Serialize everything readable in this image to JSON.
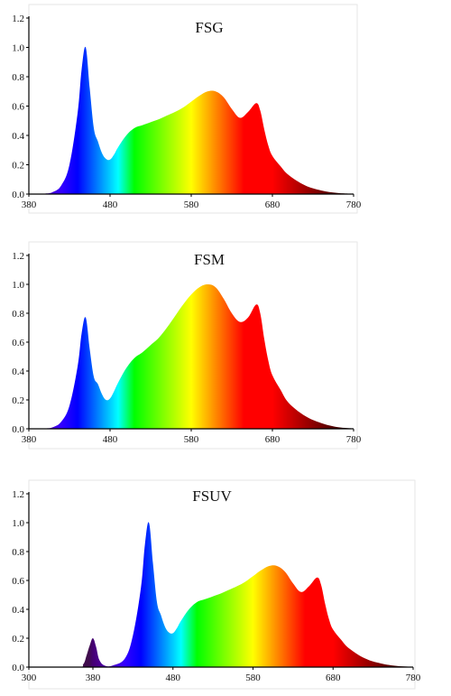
{
  "chart_data": [
    {
      "type": "area",
      "title": "FSG",
      "xlabel": "",
      "ylabel": "",
      "xlim": [
        380,
        780
      ],
      "ylim": [
        0,
        1.2
      ],
      "xticks": [
        380,
        480,
        580,
        680,
        780
      ],
      "yticks": [
        0.0,
        0.2,
        0.4,
        0.6,
        0.8,
        1.0,
        1.2
      ],
      "ytick_labels": [
        "0.0",
        "0.2",
        "0.4",
        "0.6",
        "0.8",
        "1.0",
        "1.2"
      ],
      "grid": false,
      "fill": "spectral",
      "x": [
        380,
        400,
        410,
        420,
        430,
        440,
        445,
        450,
        455,
        460,
        465,
        470,
        475,
        480,
        485,
        490,
        500,
        510,
        520,
        530,
        540,
        550,
        560,
        570,
        580,
        590,
        600,
        610,
        620,
        630,
        640,
        650,
        660,
        665,
        670,
        675,
        680,
        690,
        700,
        720,
        740,
        760,
        780
      ],
      "y": [
        0.0,
        0.003,
        0.015,
        0.06,
        0.2,
        0.55,
        0.85,
        1.0,
        0.72,
        0.45,
        0.36,
        0.28,
        0.24,
        0.235,
        0.27,
        0.32,
        0.4,
        0.45,
        0.47,
        0.49,
        0.51,
        0.535,
        0.56,
        0.59,
        0.63,
        0.67,
        0.7,
        0.7,
        0.66,
        0.58,
        0.52,
        0.56,
        0.62,
        0.57,
        0.44,
        0.33,
        0.26,
        0.19,
        0.13,
        0.06,
        0.025,
        0.008,
        0.002
      ]
    },
    {
      "type": "area",
      "title": "FSM",
      "xlabel": "",
      "ylabel": "",
      "xlim": [
        380,
        780
      ],
      "ylim": [
        0,
        1.2
      ],
      "xticks": [
        380,
        480,
        580,
        680,
        780
      ],
      "yticks": [
        0.0,
        0.2,
        0.4,
        0.6,
        0.8,
        1.0,
        1.2
      ],
      "ytick_labels": [
        "0.0",
        "0.2",
        "0.4",
        "0.6",
        "0.8",
        "1.0",
        "1.2"
      ],
      "grid": false,
      "fill": "spectral",
      "x": [
        380,
        400,
        410,
        420,
        430,
        440,
        445,
        450,
        455,
        460,
        465,
        470,
        475,
        480,
        485,
        490,
        500,
        510,
        520,
        530,
        540,
        550,
        560,
        570,
        580,
        590,
        600,
        610,
        620,
        630,
        640,
        650,
        660,
        665,
        670,
        675,
        680,
        690,
        700,
        720,
        740,
        760,
        780
      ],
      "y": [
        0.0,
        0.003,
        0.012,
        0.05,
        0.16,
        0.43,
        0.66,
        0.77,
        0.55,
        0.36,
        0.31,
        0.24,
        0.2,
        0.21,
        0.26,
        0.32,
        0.42,
        0.49,
        0.53,
        0.58,
        0.63,
        0.7,
        0.78,
        0.86,
        0.93,
        0.98,
        1.0,
        0.98,
        0.9,
        0.8,
        0.74,
        0.77,
        0.86,
        0.8,
        0.62,
        0.47,
        0.37,
        0.27,
        0.18,
        0.09,
        0.04,
        0.012,
        0.002
      ]
    },
    {
      "type": "area",
      "title": "FSUV",
      "xlabel": "",
      "ylabel": "",
      "xlim": [
        300,
        780
      ],
      "ylim": [
        0,
        1.2
      ],
      "xticks": [
        300,
        380,
        480,
        580,
        680,
        780
      ],
      "yticks": [
        0.0,
        0.2,
        0.4,
        0.6,
        0.8,
        1.0,
        1.2
      ],
      "ytick_labels": [
        "0.0",
        "0.2",
        "0.4",
        "0.6",
        "0.8",
        "1.0",
        "1.2"
      ],
      "grid": false,
      "fill": "spectral",
      "x": [
        300,
        360,
        368,
        372,
        376,
        380,
        384,
        388,
        395,
        405,
        420,
        430,
        440,
        445,
        450,
        455,
        460,
        465,
        470,
        475,
        480,
        485,
        490,
        500,
        510,
        520,
        530,
        540,
        550,
        560,
        570,
        580,
        590,
        600,
        610,
        620,
        630,
        640,
        650,
        660,
        665,
        670,
        675,
        680,
        690,
        700,
        720,
        740,
        760,
        780
      ],
      "y": [
        0.0,
        0.0,
        0.02,
        0.08,
        0.15,
        0.2,
        0.14,
        0.05,
        0.01,
        0.012,
        0.06,
        0.22,
        0.55,
        0.85,
        1.0,
        0.72,
        0.45,
        0.36,
        0.28,
        0.24,
        0.235,
        0.27,
        0.32,
        0.4,
        0.45,
        0.47,
        0.49,
        0.51,
        0.535,
        0.56,
        0.59,
        0.63,
        0.67,
        0.7,
        0.7,
        0.66,
        0.58,
        0.52,
        0.56,
        0.62,
        0.57,
        0.44,
        0.33,
        0.26,
        0.19,
        0.13,
        0.06,
        0.025,
        0.008,
        0.002
      ]
    }
  ]
}
